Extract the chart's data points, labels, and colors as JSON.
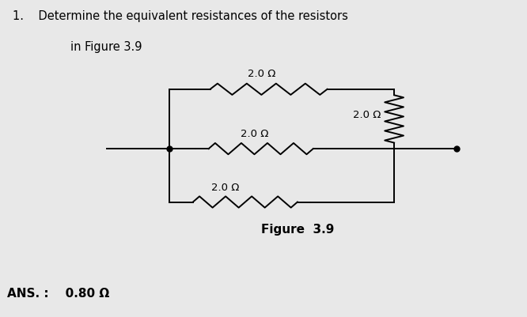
{
  "title_line1": "1.    Determine the equivalent resistances of the resistors",
  "title_line2": "        in Figure 3.9",
  "figure_label": "Figure  3.9",
  "ans_label": "ANS. :    0.80 Ω",
  "resistor_label": "2.0 Ω",
  "background_color": "#e8e8e8",
  "line_color": "#000000",
  "text_color": "#000000",
  "node_color": "#000000",
  "font_size_title": 10.5,
  "font_size_label": 9.5,
  "font_size_ans": 11,
  "font_size_fig": 11,
  "lw": 1.4
}
